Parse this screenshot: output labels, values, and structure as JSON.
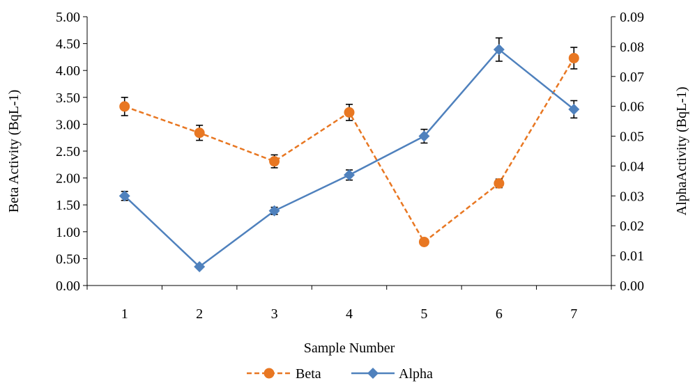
{
  "chart_data": {
    "type": "line",
    "title": "",
    "xlabel": "Sample Number",
    "ylabel_left": "Beta Activity (BqL-1)",
    "ylabel_right": "AlphaActivity (BqL-1)",
    "categories": [
      "1",
      "2",
      "3",
      "4",
      "5",
      "6",
      "7"
    ],
    "left_axis": {
      "min": 0,
      "max": 5,
      "step": 0.5,
      "ticks": [
        "0.00",
        "0.50",
        "1.00",
        "1.50",
        "2.00",
        "2.50",
        "3.00",
        "3.50",
        "4.00",
        "4.50",
        "5.00"
      ]
    },
    "right_axis": {
      "min": 0,
      "max": 0.09,
      "step": 0.01,
      "ticks": [
        "0.00",
        "0.01",
        "0.02",
        "0.03",
        "0.04",
        "0.05",
        "0.06",
        "0.07",
        "0.08",
        "0.09"
      ]
    },
    "series": [
      {
        "name": "Beta",
        "axis": "left",
        "color": "#E87722",
        "line_style": "dashed",
        "marker": "circle",
        "values": [
          3.33,
          2.84,
          2.31,
          3.22,
          0.81,
          1.9,
          4.23
        ],
        "errors": [
          0.17,
          0.14,
          0.12,
          0.15,
          0.0,
          0.08,
          0.2
        ]
      },
      {
        "name": "Alpha",
        "axis": "right",
        "color": "#4F81BD",
        "line_style": "solid",
        "marker": "diamond",
        "values": [
          0.03,
          0.0063,
          0.025,
          0.037,
          0.05,
          0.079,
          0.059
        ],
        "errors": [
          0.0015,
          0.0,
          0.0012,
          0.0017,
          0.0023,
          0.0039,
          0.0029
        ]
      }
    ],
    "grid": false,
    "legend_position": "bottom"
  }
}
